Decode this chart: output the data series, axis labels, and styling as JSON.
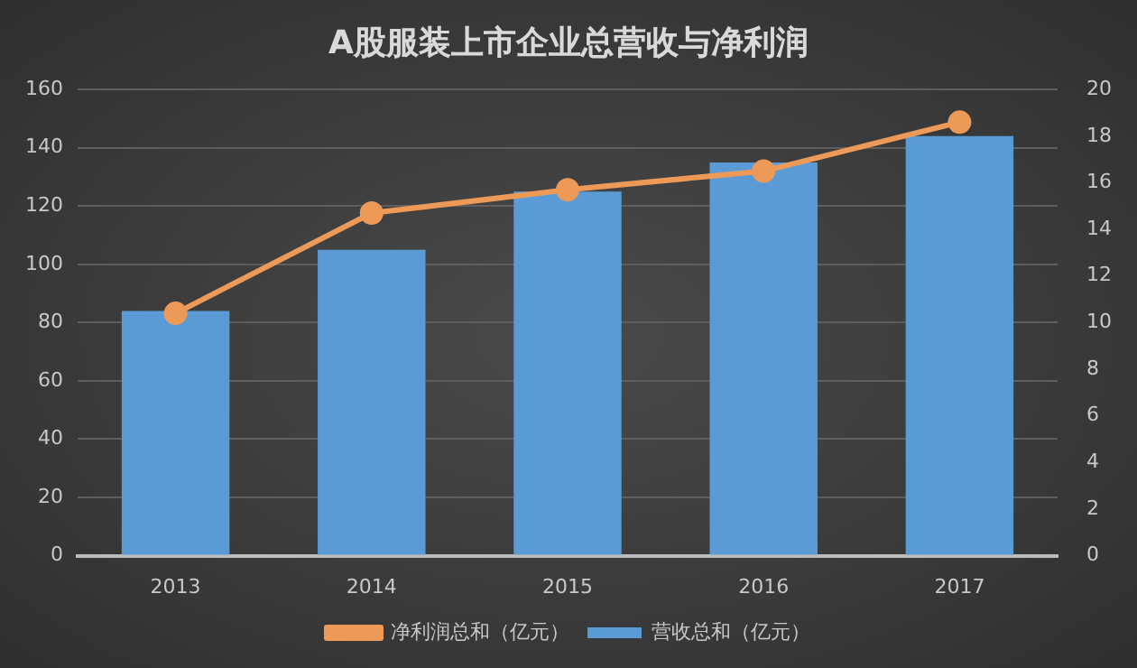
{
  "chart_data": {
    "type": "bar",
    "title": "A股服装上市企业总营收与净利润",
    "categories": [
      "2013",
      "2014",
      "2015",
      "2016",
      "2017"
    ],
    "series": [
      {
        "name": "营收总和（亿元）",
        "color": "#5b9bd5",
        "values": [
          84,
          105,
          125,
          135,
          144
        ]
      },
      {
        "name": "净利润总和（亿元）",
        "type": "line",
        "axis": "y2",
        "color": "#ed9a58",
        "values": [
          10.4,
          14.7,
          15.7,
          16.5,
          18.6
        ]
      }
    ],
    "ylim": [
      0,
      160
    ],
    "yticks": [
      0,
      20,
      40,
      60,
      80,
      100,
      120,
      140,
      160
    ],
    "y2lim": [
      0,
      20
    ],
    "y2ticks": [
      0,
      2,
      4,
      6,
      8,
      10,
      12,
      14,
      16,
      18,
      20
    ],
    "grid": "y",
    "legend": "bottom",
    "marker": "circle"
  }
}
